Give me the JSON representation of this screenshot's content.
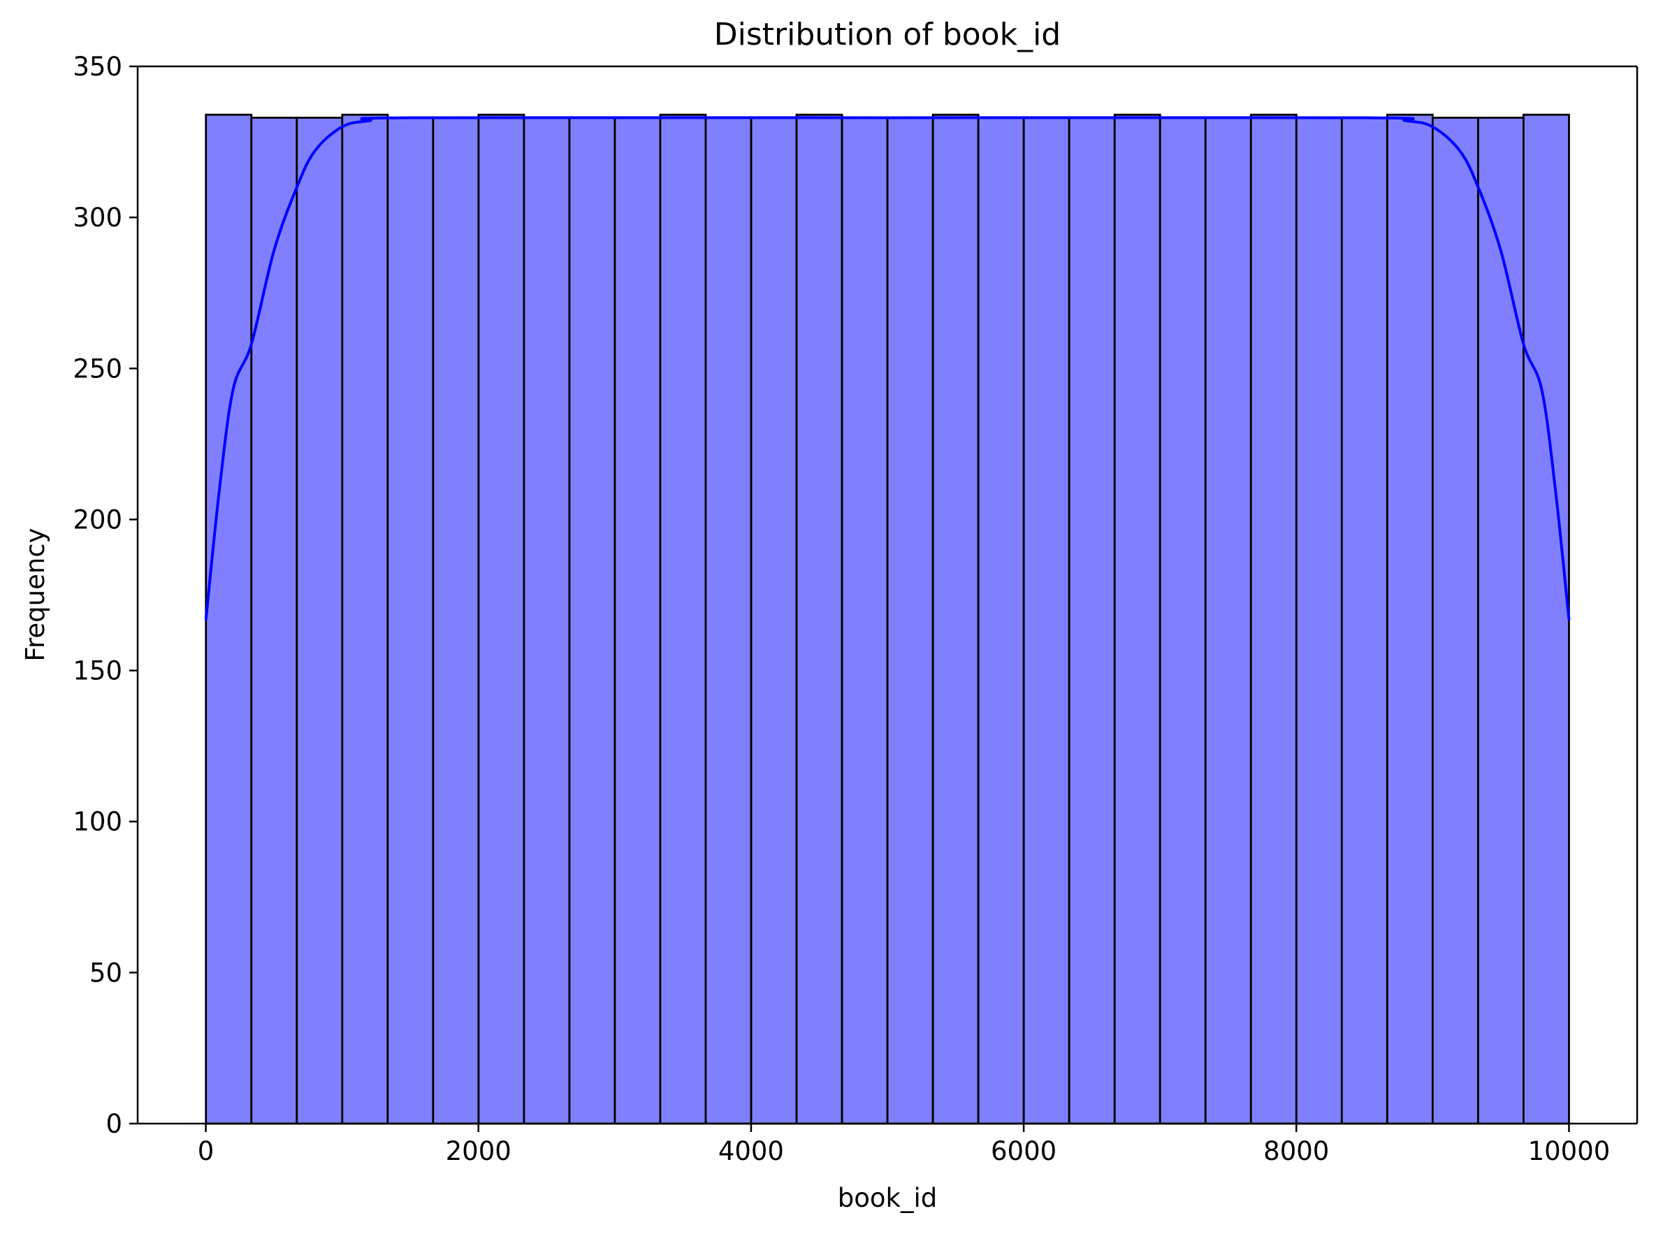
{
  "chart_data": {
    "type": "bar",
    "title": "Distribution of book_id",
    "xlabel": "book_id",
    "ylabel": "Frequency",
    "xlim": [
      -500,
      10500
    ],
    "ylim": [
      0,
      350
    ],
    "xticks": [
      0,
      2000,
      4000,
      6000,
      8000,
      10000
    ],
    "yticks": [
      0,
      50,
      100,
      150,
      200,
      250,
      300,
      350
    ],
    "grid": false,
    "bins": {
      "start": 1,
      "end": 10000,
      "count": 30,
      "values": [
        334,
        333,
        333,
        334,
        333,
        333,
        334,
        333,
        333,
        333,
        334,
        333,
        333,
        334,
        333,
        333,
        334,
        333,
        333,
        333,
        334,
        333,
        333,
        334,
        333,
        333,
        334,
        333,
        333,
        334
      ]
    },
    "bar_color": "#8080ff",
    "bar_edge_color": "#000000",
    "kde": {
      "color": "#0000ff",
      "points": [
        [
          1,
          167
        ],
        [
          100,
          210
        ],
        [
          200,
          243
        ],
        [
          334,
          258
        ],
        [
          500,
          289
        ],
        [
          668,
          310
        ],
        [
          800,
          322
        ],
        [
          1000,
          330
        ],
        [
          1200,
          332
        ],
        [
          1500,
          333
        ],
        [
          5000,
          333
        ],
        [
          8500,
          333
        ],
        [
          8800,
          332
        ],
        [
          9000,
          330
        ],
        [
          9200,
          322
        ],
        [
          9334,
          310
        ],
        [
          9500,
          289
        ],
        [
          9667,
          258
        ],
        [
          9800,
          243
        ],
        [
          9900,
          210
        ],
        [
          10000,
          167
        ]
      ]
    }
  }
}
